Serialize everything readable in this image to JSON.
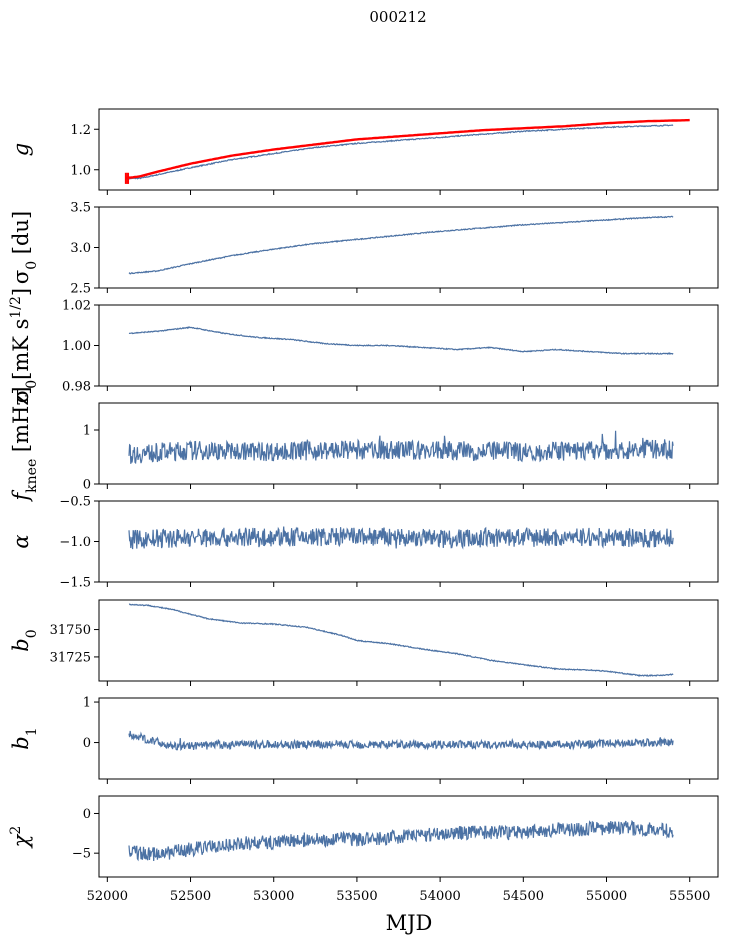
{
  "title": "000212",
  "xlabel": "MJD",
  "colors": {
    "series": "#4c72a4",
    "fit": "#ff0000"
  },
  "chart_data": [
    {
      "type": "line",
      "ylabel": "g",
      "xlim": [
        51950,
        55670
      ],
      "ylim": [
        0.9,
        1.3
      ],
      "yticks": [
        1.0,
        1.2
      ],
      "ytick_labels": [
        "1.0",
        "1.2"
      ],
      "x": [
        52120,
        52150,
        52200,
        52300,
        52500,
        52750,
        53000,
        53250,
        53500,
        53750,
        54000,
        54250,
        54500,
        54750,
        55000,
        55200,
        55400
      ],
      "values": [
        0.955,
        0.957,
        0.958,
        0.975,
        1.01,
        1.05,
        1.08,
        1.11,
        1.13,
        1.145,
        1.16,
        1.175,
        1.19,
        1.2,
        1.21,
        1.215,
        1.22
      ],
      "fit": {
        "name": "fit",
        "x": [
          52110,
          52150,
          52200,
          52300,
          52500,
          52750,
          53000,
          53250,
          53500,
          53750,
          54000,
          54250,
          54500,
          54750,
          55000,
          55250,
          55500
        ],
        "values": [
          0.96,
          0.962,
          0.968,
          0.99,
          1.03,
          1.07,
          1.1,
          1.125,
          1.15,
          1.165,
          1.18,
          1.195,
          1.205,
          1.215,
          1.23,
          1.24,
          1.245
        ]
      }
    },
    {
      "type": "line",
      "ylabel": "σ0 [du]",
      "xlim": [
        51950,
        55670
      ],
      "ylim": [
        2.5,
        3.5
      ],
      "yticks": [
        2.5,
        3.0,
        3.5
      ],
      "ytick_labels": [
        "2.5",
        "3.0",
        "3.5"
      ],
      "x": [
        52130,
        52300,
        52500,
        52750,
        53000,
        53250,
        53500,
        53750,
        54000,
        54250,
        54500,
        54750,
        55000,
        55250,
        55400
      ],
      "values": [
        2.68,
        2.71,
        2.8,
        2.9,
        2.98,
        3.05,
        3.1,
        3.15,
        3.2,
        3.24,
        3.28,
        3.31,
        3.34,
        3.37,
        3.38
      ]
    },
    {
      "type": "line",
      "ylabel": "σ0[mK s^1/2]",
      "xlim": [
        51950,
        55670
      ],
      "ylim": [
        0.98,
        1.02
      ],
      "yticks": [
        0.98,
        1.0,
        1.02
      ],
      "ytick_labels": [
        "0.98",
        "1.00",
        "1.02"
      ],
      "x": [
        52130,
        52300,
        52500,
        52700,
        52900,
        53100,
        53300,
        53500,
        53700,
        53900,
        54100,
        54300,
        54500,
        54700,
        54900,
        55100,
        55300,
        55400
      ],
      "values": [
        1.006,
        1.007,
        1.009,
        1.006,
        1.004,
        1.003,
        1.001,
        1.0,
        1.0,
        0.999,
        0.998,
        0.999,
        0.997,
        0.998,
        0.997,
        0.996,
        0.996,
        0.996
      ]
    },
    {
      "type": "line",
      "ylabel": "f_knee [mHz]",
      "xlim": [
        51950,
        55670
      ],
      "ylim": [
        0.0,
        1.5
      ],
      "yticks": [
        0,
        1
      ],
      "ytick_labels": [
        "0",
        "1"
      ],
      "noise": {
        "mean": 0.6,
        "amplitude": 0.18
      },
      "x": [
        52130,
        52500,
        53000,
        53500,
        54000,
        54500,
        55000,
        55400
      ],
      "values": [
        0.55,
        0.62,
        0.6,
        0.63,
        0.62,
        0.6,
        0.62,
        0.65
      ]
    },
    {
      "type": "line",
      "ylabel": "α",
      "xlim": [
        51950,
        55670
      ],
      "ylim": [
        -1.5,
        -0.5
      ],
      "yticks": [
        -1.5,
        -1.0,
        -0.5
      ],
      "ytick_labels": [
        "−1.5",
        "−1.0",
        "−0.5"
      ],
      "noise": {
        "mean": -0.95,
        "amplitude": 0.12
      },
      "x": [
        52130,
        52500,
        53000,
        53500,
        54000,
        54500,
        55000,
        55400
      ],
      "values": [
        -0.98,
        -0.95,
        -0.95,
        -0.94,
        -0.96,
        -0.95,
        -0.95,
        -0.96
      ]
    },
    {
      "type": "line",
      "ylabel": "b0",
      "xlim": [
        51950,
        55670
      ],
      "ylim": [
        31703,
        31777
      ],
      "yticks": [
        31725,
        31750
      ],
      "ytick_labels": [
        "31725",
        "31750"
      ],
      "x": [
        52130,
        52250,
        52400,
        52600,
        52800,
        53000,
        53200,
        53400,
        53500,
        53700,
        53900,
        54100,
        54300,
        54500,
        54700,
        54900,
        55000,
        55100,
        55200,
        55300,
        55400
      ],
      "values": [
        31773,
        31772,
        31768,
        31760,
        31756,
        31755,
        31752,
        31745,
        31740,
        31737,
        31732,
        31728,
        31722,
        31718,
        31714,
        31713,
        31712,
        31710,
        31708,
        31708,
        31709
      ]
    },
    {
      "type": "line",
      "ylabel": "b1",
      "xlim": [
        51950,
        55670
      ],
      "ylim": [
        -0.9,
        1.1
      ],
      "yticks": [
        0,
        1
      ],
      "ytick_labels": [
        "0",
        "1"
      ],
      "noise": {
        "mean": -0.05,
        "amplitude": 0.1
      },
      "x": [
        52130,
        52400,
        52800,
        53200,
        53600,
        54000,
        54400,
        54800,
        55200,
        55400
      ],
      "values": [
        0.2,
        -0.1,
        -0.05,
        -0.05,
        -0.05,
        -0.05,
        -0.05,
        -0.05,
        0.0,
        0.0
      ]
    },
    {
      "type": "line",
      "ylabel": "χ²",
      "xlim": [
        51950,
        55670
      ],
      "ylim": [
        -8,
        2.2
      ],
      "yticks": [
        -5,
        0
      ],
      "ytick_labels": [
        "−5",
        "0"
      ],
      "noise": {
        "mean": 0,
        "amplitude": 0.9
      },
      "x": [
        52130,
        52300,
        52500,
        52800,
        53200,
        53600,
        54000,
        54400,
        54800,
        55100,
        55400
      ],
      "values": [
        -4.8,
        -5.2,
        -4.5,
        -3.8,
        -3.4,
        -3.2,
        -2.5,
        -2.3,
        -2.0,
        -1.8,
        -2.2
      ]
    }
  ],
  "xticks": [
    52000,
    52500,
    53000,
    53500,
    54000,
    54500,
    55000,
    55500
  ],
  "xtick_labels": [
    "52000",
    "52500",
    "53000",
    "53500",
    "54000",
    "54500",
    "55000",
    "55500"
  ]
}
